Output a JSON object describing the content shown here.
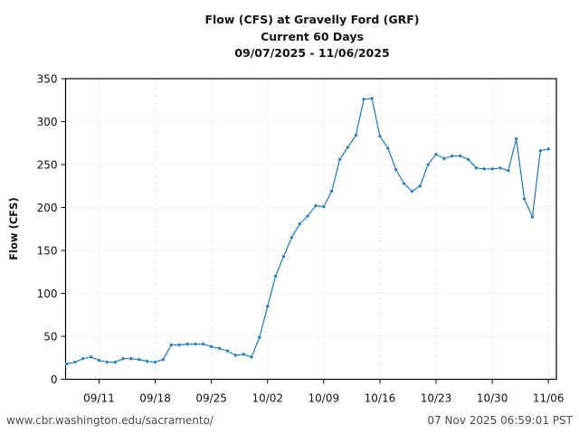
{
  "chart": {
    "title_lines": [
      "Flow (CFS) at Gravelly Ford (GRF)",
      "Current 60 Days",
      "09/07/2025 - 11/06/2025"
    ],
    "ylabel": "Flow (CFS)",
    "line_color": "#1f77b4"
  },
  "footer": {
    "source_url": "www.cbr.washington.edu/sacramento/",
    "timestamp": "07 Nov 2025 06:59:01 PST"
  },
  "chart_data": {
    "type": "line",
    "title": "Flow (CFS) at Gravelly Ford (GRF) — Current 60 Days — 09/07/2025 - 11/06/2025",
    "xlabel": "",
    "ylabel": "Flow (CFS)",
    "ylim": [
      0,
      350
    ],
    "yticks": [
      0,
      50,
      100,
      150,
      200,
      250,
      300,
      350
    ],
    "xticks": [
      "09/11",
      "09/18",
      "09/25",
      "10/02",
      "10/09",
      "10/16",
      "10/23",
      "10/30",
      "11/06"
    ],
    "grid": true,
    "legend": null,
    "x": [
      "09/07",
      "09/08",
      "09/09",
      "09/10",
      "09/11",
      "09/12",
      "09/13",
      "09/14",
      "09/15",
      "09/16",
      "09/17",
      "09/18",
      "09/19",
      "09/20",
      "09/21",
      "09/22",
      "09/23",
      "09/24",
      "09/25",
      "09/26",
      "09/27",
      "09/28",
      "09/29",
      "09/30",
      "10/01",
      "10/02",
      "10/03",
      "10/04",
      "10/05",
      "10/06",
      "10/07",
      "10/08",
      "10/09",
      "10/10",
      "10/11",
      "10/12",
      "10/13",
      "10/14",
      "10/15",
      "10/16",
      "10/17",
      "10/18",
      "10/19",
      "10/20",
      "10/21",
      "10/22",
      "10/23",
      "10/24",
      "10/25",
      "10/26",
      "10/27",
      "10/28",
      "10/29",
      "10/30",
      "10/31",
      "11/01",
      "11/02",
      "11/03",
      "11/04",
      "11/05",
      "11/06"
    ],
    "series": [
      {
        "name": "Flow (CFS)",
        "values": [
          18,
          20,
          24,
          26,
          22,
          20,
          20,
          24,
          24,
          23,
          21,
          20,
          23,
          40,
          40,
          41,
          41,
          41,
          38,
          36,
          33,
          28,
          29,
          26,
          49,
          85,
          120,
          143,
          165,
          181,
          190,
          202,
          201,
          219,
          256,
          270,
          284,
          326,
          327,
          283,
          269,
          244,
          228,
          219,
          225,
          250,
          262,
          257,
          260,
          260,
          256,
          246,
          245,
          245,
          246,
          243,
          280,
          210,
          189,
          266,
          268
        ]
      }
    ]
  }
}
